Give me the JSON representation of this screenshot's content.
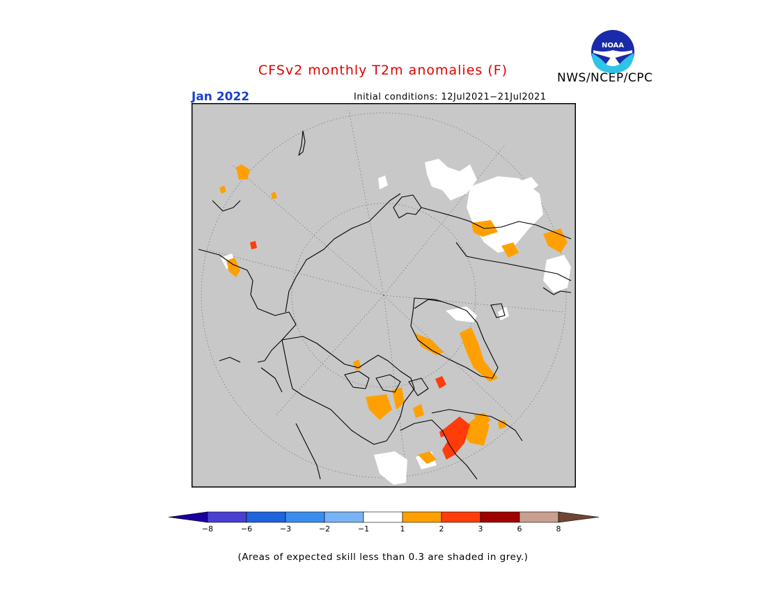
{
  "header": {
    "title": "CFSv2 monthly T2m anomalies (F)",
    "agency": "NWS/NCEP/CPC",
    "month": "Jan 2022",
    "initial_conditions": "Initial conditions: 12Jul2021−21Jul2021",
    "logo_text": "NOAA"
  },
  "map": {
    "projection": "north polar stereographic",
    "background_color": "#c8c8c8"
  },
  "colorbar": {
    "tick_labels": [
      "−8",
      "−6",
      "−3",
      "−2",
      "−1",
      "1",
      "2",
      "3",
      "6",
      "8"
    ],
    "colors": [
      "#1a00a0",
      "#4a3fd0",
      "#1e64dc",
      "#3c8cf0",
      "#78b4f5",
      "#ffffff",
      "#ffa000",
      "#ff3c0a",
      "#a00000",
      "#c8a090",
      "#6e4632"
    ]
  },
  "footnote": "(Areas of expected skill less than 0.3 are shaded in grey.)"
}
